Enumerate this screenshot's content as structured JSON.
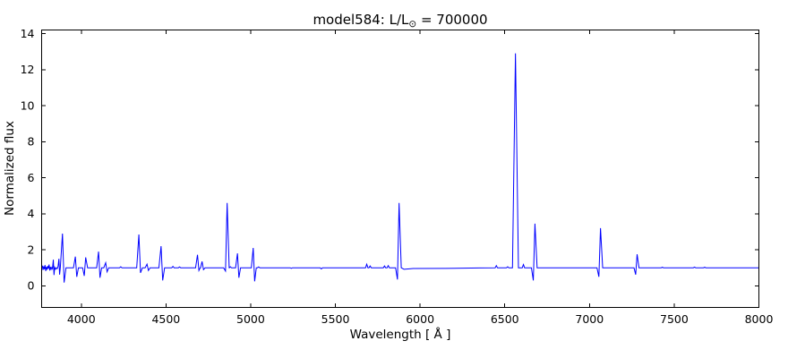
{
  "figure": {
    "title_prefix": "model584: L/L",
    "title_sub": "⊙",
    "title_suffix": " = 700000",
    "xlabel": "Wavelength [ Å ]",
    "ylabel": "Normalized flux"
  },
  "chart_data": {
    "type": "line",
    "title": "model584: L/L⊙ = 700000",
    "xlabel": "Wavelength [ Å ]",
    "ylabel": "Normalized flux",
    "xlim": [
      3766,
      8000
    ],
    "ylim": [
      -1.2,
      14.2
    ],
    "x_ticks": [
      4000,
      4500,
      5000,
      5500,
      6000,
      6500,
      7000,
      7500,
      8000
    ],
    "y_ticks": [
      0,
      2,
      4,
      6,
      8,
      10,
      12,
      14
    ],
    "grid": false,
    "legend": false,
    "line_color": "#0000ff",
    "continuum_flux": 1.0,
    "continuum_points": [
      [
        3766,
        1.0
      ],
      [
        3770,
        1.12
      ],
      [
        3774,
        0.88
      ],
      [
        3778,
        1.08
      ],
      [
        3782,
        0.92
      ],
      [
        3786,
        1.15
      ],
      [
        3790,
        0.82
      ],
      [
        3794,
        1.05
      ],
      [
        3798,
        0.9
      ],
      [
        3802,
        1.1
      ],
      [
        3806,
        0.95
      ],
      [
        3810,
        1.18
      ],
      [
        3814,
        0.85
      ],
      [
        3818,
        1.05
      ],
      [
        3822,
        0.92
      ],
      [
        3826,
        1.02
      ],
      [
        3830,
        0.95
      ],
      [
        3835,
        1.45
      ],
      [
        3839,
        0.6
      ],
      [
        3843,
        1.02
      ],
      [
        3848,
        0.92
      ],
      [
        3853,
        1.0
      ],
      [
        3858,
        0.95
      ],
      [
        3863,
        1.08
      ],
      [
        3868,
        1.5
      ],
      [
        3872,
        0.62
      ],
      [
        3876,
        0.98
      ],
      [
        5905,
        0.92
      ],
      [
        5960,
        0.96
      ],
      [
        6150,
        0.97
      ],
      [
        6350,
        0.99
      ]
    ],
    "emission_lines": [
      {
        "wavelength": 3889,
        "peak_flux": 2.9,
        "absorption_flux": 0.18,
        "absorption_side": "red",
        "half_width": 8
      },
      {
        "wavelength": 3965,
        "peak_flux": 1.62,
        "absorption_flux": 0.5,
        "absorption_side": "red",
        "half_width": 7
      },
      {
        "wavelength": 4026,
        "peak_flux": 1.58,
        "absorption_flux": 0.55,
        "absorption_side": "blue",
        "half_width": 7
      },
      {
        "wavelength": 4102,
        "peak_flux": 1.9,
        "absorption_flux": 0.45,
        "absorption_side": "red",
        "half_width": 7
      },
      {
        "wavelength": 4144,
        "peak_flux": 1.28,
        "absorption_flux": 0.78,
        "absorption_side": "red",
        "half_width": 7
      },
      {
        "wavelength": 4340,
        "peak_flux": 2.85,
        "absorption_flux": 0.72,
        "absorption_side": "red",
        "half_width": 8
      },
      {
        "wavelength": 4388,
        "peak_flux": 1.2,
        "absorption_flux": 0.85,
        "absorption_side": "red",
        "half_width": 7
      },
      {
        "wavelength": 4471,
        "peak_flux": 2.2,
        "absorption_flux": 0.3,
        "absorption_side": "red",
        "half_width": 8
      },
      {
        "wavelength": 4686,
        "peak_flux": 1.72,
        "absorption_flux": 0.85,
        "absorption_side": "red",
        "half_width": 7
      },
      {
        "wavelength": 4713,
        "peak_flux": 1.35,
        "absorption_flux": 0.9,
        "absorption_side": "red",
        "half_width": 7
      },
      {
        "wavelength": 4861,
        "peak_flux": 4.6,
        "absorption_flux": 0.82,
        "absorption_side": "blue",
        "half_width": 8
      },
      {
        "wavelength": 4922,
        "peak_flux": 1.8,
        "absorption_flux": 0.45,
        "absorption_side": "red",
        "half_width": 7
      },
      {
        "wavelength": 5015,
        "peak_flux": 2.1,
        "absorption_flux": 0.25,
        "absorption_side": "red",
        "half_width": 7
      },
      {
        "wavelength": 5876,
        "peak_flux": 4.6,
        "absorption_flux": 0.35,
        "absorption_side": "blue",
        "half_width": 8
      },
      {
        "wavelength": 6563,
        "peak_flux": 12.9,
        "absorption_flux": null,
        "absorption_side": null,
        "half_width": 11
      },
      {
        "wavelength": 6678,
        "peak_flux": 3.45,
        "absorption_flux": 0.3,
        "absorption_side": "blue",
        "half_width": 8
      },
      {
        "wavelength": 7065,
        "peak_flux": 3.2,
        "absorption_flux": 0.5,
        "absorption_side": "blue",
        "half_width": 8
      },
      {
        "wavelength": 7281,
        "peak_flux": 1.75,
        "absorption_flux": 0.62,
        "absorption_side": "blue",
        "half_width": 7
      }
    ],
    "minor_features": [
      [
        4233,
        1.06
      ],
      [
        4541,
        1.08
      ],
      [
        4580,
        1.05
      ],
      [
        4880,
        1.06
      ],
      [
        5047,
        1.05
      ],
      [
        5240,
        0.97
      ],
      [
        5417,
        0.94
      ],
      [
        5685,
        1.2
      ],
      [
        5705,
        1.1
      ],
      [
        5790,
        1.1
      ],
      [
        5812,
        1.12
      ],
      [
        6450,
        1.12
      ],
      [
        6517,
        1.06
      ],
      [
        6610,
        1.18
      ],
      [
        7430,
        1.03
      ],
      [
        7620,
        1.04
      ],
      [
        7680,
        1.03
      ]
    ]
  }
}
